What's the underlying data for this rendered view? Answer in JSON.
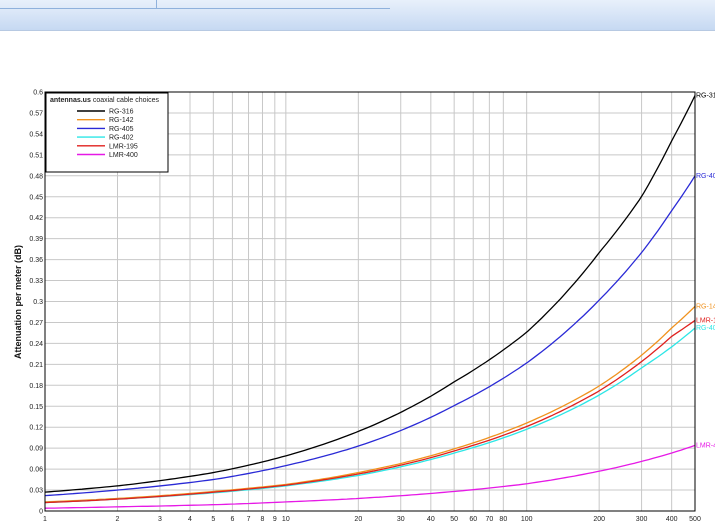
{
  "chart_data": {
    "type": "line",
    "title": "",
    "xlabel": "",
    "ylabel": "Attenuation per meter (dB)",
    "x_scale": "log",
    "xlim": [
      1,
      500
    ],
    "ylim": [
      0,
      0.6
    ],
    "grid": true,
    "x_ticks": [
      1,
      2,
      3,
      4,
      5,
      6,
      7,
      8,
      9,
      10,
      20,
      30,
      40,
      50,
      60,
      70,
      80,
      100,
      200,
      300,
      400,
      500
    ],
    "y_ticks": [
      0,
      0.03,
      0.06,
      0.09,
      0.12,
      0.15,
      0.18,
      0.21,
      0.24,
      0.27,
      0.3,
      0.33,
      0.36,
      0.39,
      0.42,
      0.45,
      0.48,
      0.51,
      0.54,
      0.57,
      0.6
    ],
    "legend": {
      "placement": "top-left",
      "title_bold": "antennas.us",
      "title_rest": "coaxial cable choices"
    },
    "series": [
      {
        "name": "RG-316",
        "color": "#000000",
        "end_label": "RG-31",
        "x": [
          1,
          2,
          5,
          10,
          20,
          50,
          100,
          200,
          300,
          400,
          500
        ],
        "values": [
          0.027,
          0.036,
          0.055,
          0.079,
          0.114,
          0.185,
          0.256,
          0.37,
          0.45,
          0.53,
          0.595
        ]
      },
      {
        "name": "RG-142",
        "color": "#f0921e",
        "end_label": "RG-14",
        "x": [
          1,
          2,
          5,
          10,
          20,
          50,
          100,
          200,
          300,
          400,
          500
        ],
        "values": [
          0.013,
          0.018,
          0.028,
          0.038,
          0.055,
          0.089,
          0.126,
          0.179,
          0.223,
          0.262,
          0.293
        ]
      },
      {
        "name": "RG-405",
        "color": "#2a2ad6",
        "end_label": "RG-40",
        "x": [
          1,
          2,
          5,
          10,
          20,
          50,
          100,
          200,
          300,
          400,
          500
        ],
        "values": [
          0.022,
          0.03,
          0.045,
          0.065,
          0.093,
          0.151,
          0.212,
          0.302,
          0.37,
          0.43,
          0.48
        ]
      },
      {
        "name": "RG-402",
        "color": "#2ce6e6",
        "end_label": "RG-40",
        "x": [
          1,
          2,
          5,
          10,
          20,
          50,
          100,
          200,
          300,
          400,
          500
        ],
        "values": [
          0.012,
          0.017,
          0.026,
          0.036,
          0.051,
          0.083,
          0.117,
          0.166,
          0.205,
          0.235,
          0.262
        ]
      },
      {
        "name": "LMR-195",
        "color": "#e0201e",
        "end_label": "LMR-1",
        "x": [
          1,
          2,
          5,
          10,
          20,
          50,
          100,
          200,
          300,
          400,
          500
        ],
        "values": [
          0.012,
          0.017,
          0.027,
          0.037,
          0.053,
          0.086,
          0.121,
          0.172,
          0.214,
          0.25,
          0.273
        ]
      },
      {
        "name": "LMR-400",
        "color": "#e619e6",
        "end_label": "LMR-4",
        "x": [
          1,
          2,
          5,
          10,
          20,
          50,
          100,
          200,
          300,
          400,
          500
        ],
        "values": [
          0.004,
          0.006,
          0.009,
          0.013,
          0.018,
          0.028,
          0.039,
          0.057,
          0.071,
          0.083,
          0.094
        ]
      }
    ]
  }
}
